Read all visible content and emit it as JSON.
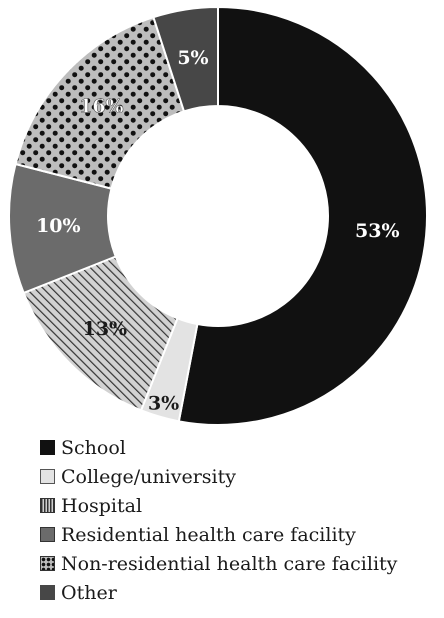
{
  "chart_data": {
    "type": "pie",
    "variant": "donut",
    "title": "",
    "categories": [
      "School",
      "College/university",
      "Hospital",
      "Residential health care facility",
      "Non-residential health care facility",
      "Other"
    ],
    "values": [
      53,
      3,
      13,
      10,
      16,
      5
    ],
    "data_labels": [
      "53%",
      "3%",
      "13%",
      "10%",
      "16%",
      "5%"
    ],
    "colors": [
      "#111111",
      "#e3e3e3",
      "#9a9a9a",
      "#6b6b6b",
      "#bdbdbd",
      "#474747"
    ],
    "patterns": [
      "solid",
      "solid",
      "diagonal-hatch",
      "solid",
      "dots",
      "solid"
    ],
    "start_angle": "12 o'clock",
    "direction": "clockwise",
    "legend_position": "bottom"
  },
  "legend": {
    "items": [
      {
        "label": "School",
        "icon": "solid-black-square"
      },
      {
        "label": "College/university",
        "icon": "light-gray-square"
      },
      {
        "label": "Hospital",
        "icon": "striped-square"
      },
      {
        "label": "Residential health care facility",
        "icon": "gray-square"
      },
      {
        "label": "Non-residential health care facility",
        "icon": "dotted-square"
      },
      {
        "label": "Other",
        "icon": "dark-gray-square"
      }
    ]
  }
}
